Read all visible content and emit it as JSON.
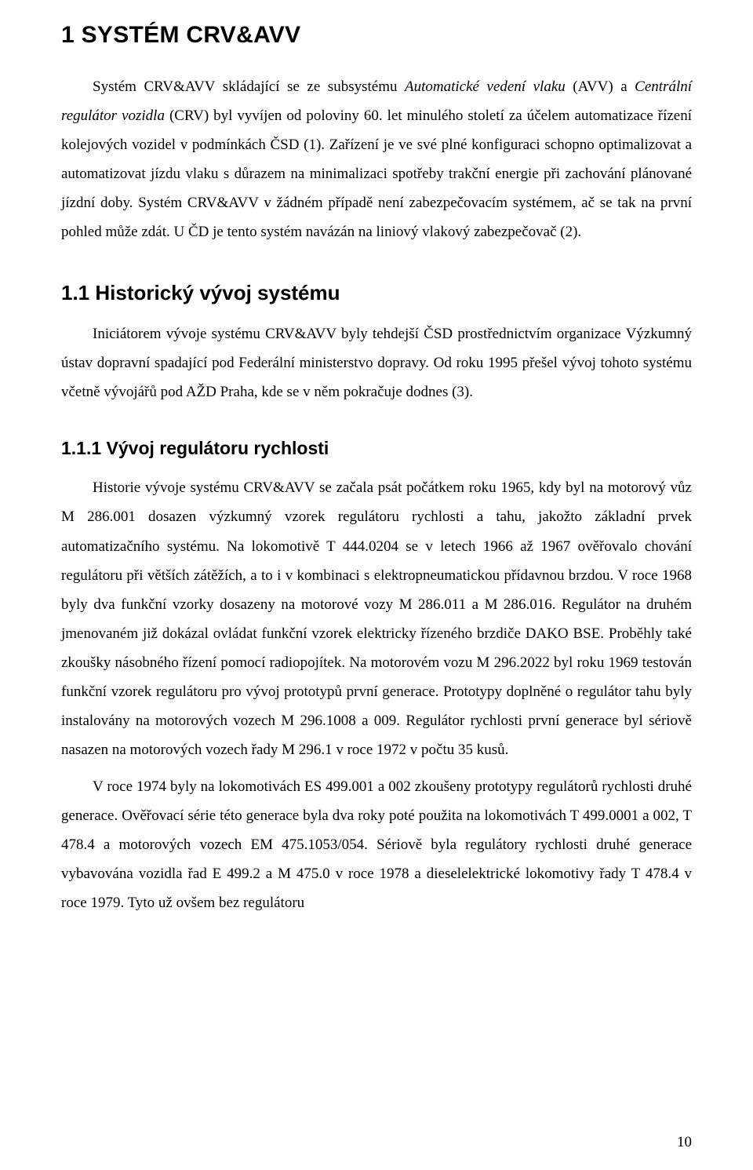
{
  "headings": {
    "h1": "1 SYSTÉM CRV&AVV",
    "h2": "1.1 Historický vývoj systému",
    "h3": "1.1.1 Vývoj regulátoru rychlosti"
  },
  "paras": {
    "p1_a": "Systém CRV&AVV skládající se ze subsystému ",
    "p1_b": "Automatické vedení vlaku",
    "p1_c": " (AVV) a ",
    "p1_d": "Centrální regulátor vozidla",
    "p1_e": " (CRV) byl vyvíjen od poloviny 60. let minulého století za účelem automatizace řízení kolejových vozidel v podmínkách ČSD (1). Zařízení je ve své plné konfiguraci schopno optimalizovat a automatizovat jízdu vlaku s důrazem na minimalizaci spotřeby trakční energie při zachování plánované jízdní doby. Systém CRV&AVV v žádném případě není zabezpečovacím systémem, ač se tak na první pohled může zdát. U ČD je tento systém navázán na liniový vlakový zabezpečovač (2).",
    "p2": "Iniciátorem vývoje systému CRV&AVV byly tehdejší ČSD prostřednictvím organizace Výzkumný ústav dopravní spadající pod Federální ministerstvo dopravy. Od roku 1995 přešel vývoj tohoto systému včetně vývojářů pod AŽD Praha, kde se v něm pokračuje dodnes (3).",
    "p3": "Historie vývoje systému CRV&AVV se začala psát počátkem roku 1965, kdy byl na motorový vůz M 286.001 dosazen výzkumný vzorek regulátoru rychlosti a tahu, jakožto základní prvek automatizačního systému. Na lokomotivě T 444.0204 se v letech 1966 až 1967 ověřovalo chování regulátoru při větších zátěžích, a to i v kombinaci s elektropneumatickou přídavnou brzdou. V roce 1968 byly dva funkční vzorky dosazeny na motorové vozy M 286.011 a M 286.016. Regulátor na druhém jmenovaném již dokázal ovládat funkční vzorek elektricky řízeného brzdiče DAKO BSE. Proběhly také zkoušky násobného řízení pomocí radiopojítek. Na motorovém vozu M 296.2022 byl roku 1969 testován funkční vzorek regulátoru pro vývoj prototypů první generace. Prototypy doplněné o regulátor tahu byly instalovány na motorových vozech M 296.1008 a 009. Regulátor rychlosti první generace byl sériově nasazen na motorových vozech řady M 296.1 v roce 1972 v počtu 35 kusů.",
    "p4": "V roce 1974 byly na lokomotivách ES 499.001 a 002 zkoušeny prototypy regulátorů rychlosti druhé generace. Ověřovací série této generace byla dva roky poté použita na lokomotivách T 499.0001 a 002, T 478.4 a motorových vozech EM 475.1053/054. Sériově byla regulátory rychlosti druhé generace vybavována vozidla řad E 499.2 a M 475.0 v roce 1978 a dieselelektrické lokomotivy řady T 478.4 v roce 1979. Tyto už ovšem bez regulátoru"
  },
  "page_number": "10"
}
